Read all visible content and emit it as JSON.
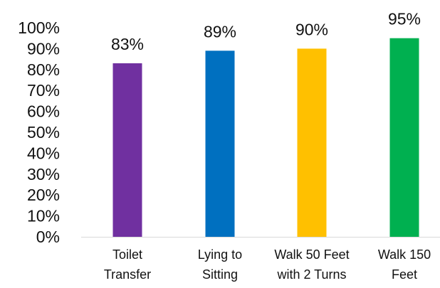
{
  "chart_data": {
    "type": "bar",
    "title": "",
    "xlabel": "",
    "ylabel": "",
    "ylim": [
      0,
      100
    ],
    "y_ticks": [
      "0%",
      "10%",
      "20%",
      "30%",
      "40%",
      "50%",
      "60%",
      "70%",
      "80%",
      "90%",
      "100%"
    ],
    "grid": false,
    "legend": "none",
    "categories": [
      [
        "Toilet",
        "Transfer"
      ],
      [
        "Lying to",
        "Sitting"
      ],
      [
        "Walk 50 Feet",
        "with 2 Turns"
      ],
      [
        "Walk 150",
        "Feet"
      ]
    ],
    "values": [
      83,
      89,
      90,
      95
    ],
    "data_labels": [
      "83%",
      "89%",
      "90%",
      "95%"
    ],
    "colors": [
      "#7030A0",
      "#0070C0",
      "#FFC000",
      "#00B050"
    ],
    "axis_color": "#D9D9D9"
  }
}
